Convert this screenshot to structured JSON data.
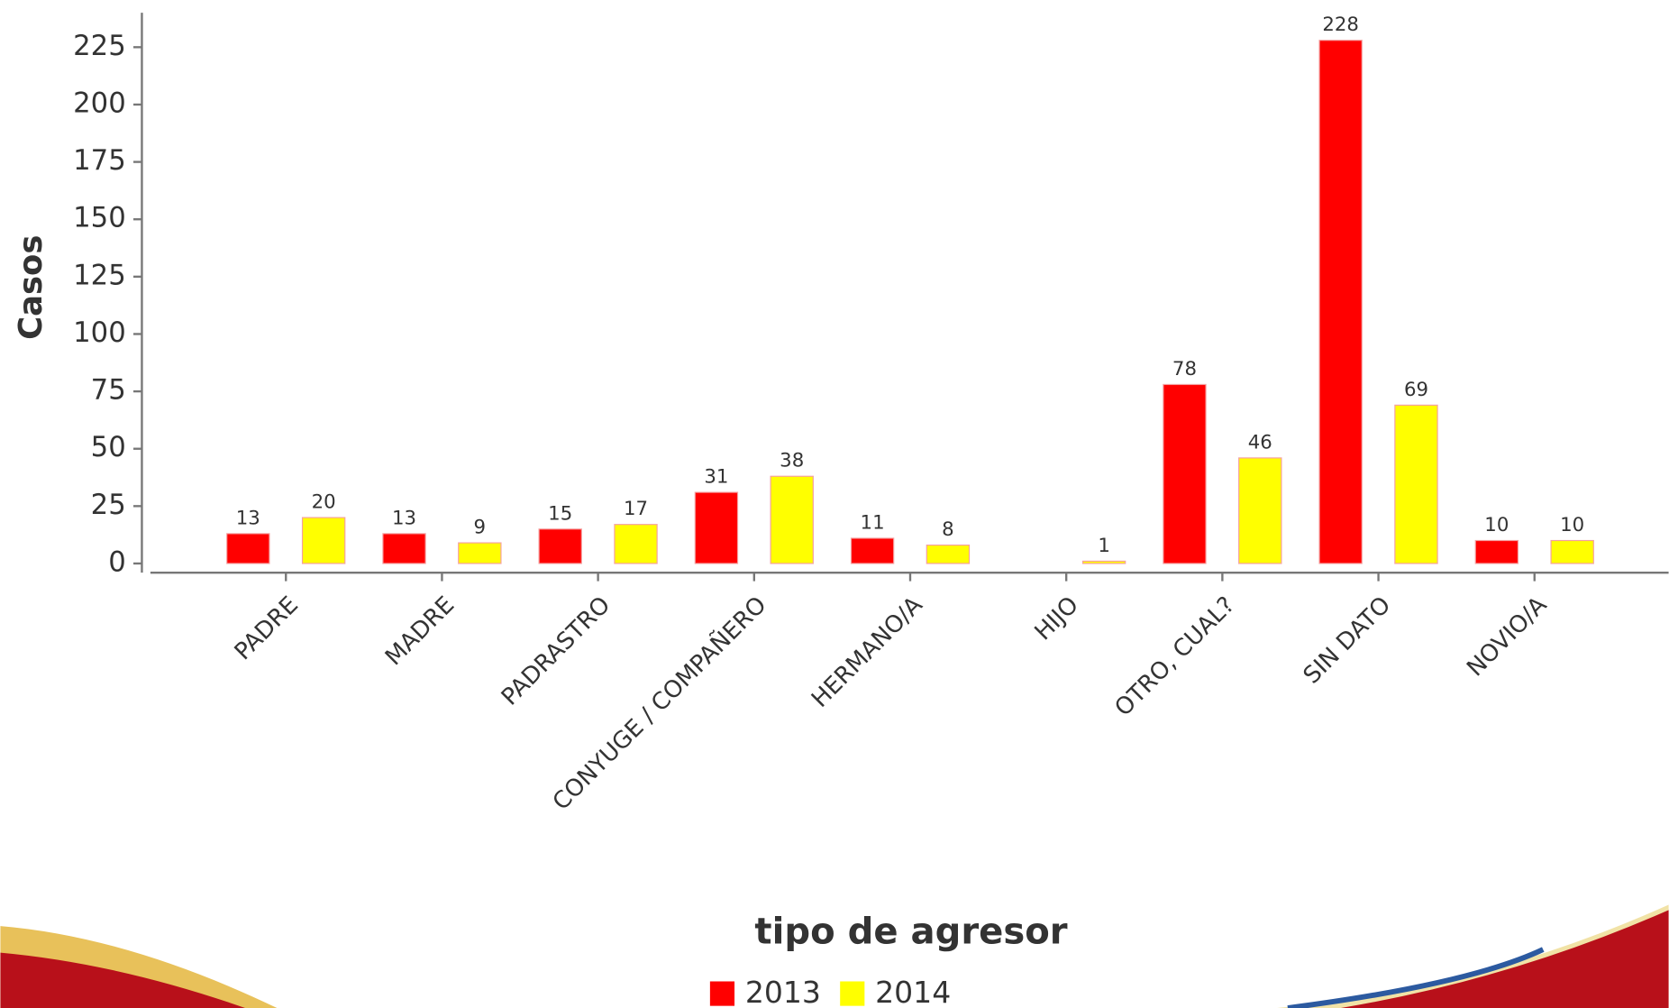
{
  "chart_data": {
    "type": "bar",
    "x_label": "tipo de agresor",
    "y_label": "Casos",
    "categories": [
      "PADRE",
      "MADRE",
      "PADRASTRO",
      "CONYUGE / COMPAÑERO",
      "HERMANO/A",
      "HIJO",
      "OTRO, CUAL?",
      "SIN DATO",
      "NOVIO/A"
    ],
    "series": [
      {
        "name": "2013",
        "color": "#ff0000",
        "values": [
          13,
          13,
          15,
          31,
          11,
          null,
          78,
          228,
          10
        ]
      },
      {
        "name": "2014",
        "color": "#ffff00",
        "values": [
          20,
          9,
          17,
          38,
          8,
          1,
          46,
          69,
          10
        ]
      }
    ],
    "ylim": [
      -4,
      240
    ],
    "yticks": [
      0,
      25,
      50,
      75,
      100,
      125,
      150,
      175,
      200,
      225
    ]
  }
}
